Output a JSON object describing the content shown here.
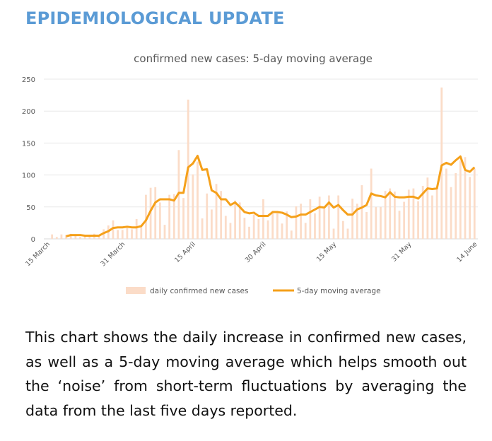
{
  "header": {
    "title": "EPIDEMIOLOGICAL UPDATE"
  },
  "colors": {
    "accent": "#5b9bd5",
    "bars": "#fbdcc8",
    "line": "#f5a01a"
  },
  "chart_data": {
    "type": "bar",
    "title": "confirmed new cases: 5-day moving average",
    "xlabel": "",
    "ylabel": "",
    "ylim": [
      0,
      250
    ],
    "yticks": [
      "0",
      "50",
      "100",
      "150",
      "200",
      "250"
    ],
    "grid": true,
    "legend_position": "bottom",
    "xtick_labels": [
      {
        "day": 0,
        "label": "15 March"
      },
      {
        "day": 16,
        "label": "31 March"
      },
      {
        "day": 31,
        "label": "15 April"
      },
      {
        "day": 46,
        "label": "30 April"
      },
      {
        "day": 61,
        "label": "15 May"
      },
      {
        "day": 77,
        "label": "31 May"
      },
      {
        "day": 91,
        "label": "14 June"
      }
    ],
    "series": [
      {
        "name": "daily confirmed new cases",
        "kind": "bar",
        "values": [
          0,
          7,
          3,
          7,
          6,
          8,
          6,
          3,
          4,
          5,
          8,
          5,
          15,
          21,
          29,
          14,
          14,
          17,
          15,
          31,
          20,
          69,
          80,
          81,
          57,
          22,
          69,
          70,
          139,
          64,
          218,
          101,
          121,
          32,
          71,
          46,
          86,
          75,
          36,
          25,
          60,
          57,
          33,
          19,
          38,
          31,
          62,
          29,
          43,
          40,
          24,
          43,
          13,
          51,
          55,
          25,
          62,
          40,
          66,
          47,
          68,
          16,
          68,
          28,
          16,
          63,
          55,
          84,
          42,
          110,
          50,
          50,
          75,
          79,
          74,
          44,
          58,
          77,
          79,
          59,
          83,
          96,
          68,
          78,
          237,
          110,
          81,
          103,
          123,
          128,
          97,
          110
        ]
      },
      {
        "name": "5-day moving average",
        "kind": "line",
        "start_day": 4,
        "values": [
          4,
          6,
          6,
          6,
          5,
          5,
          5,
          5,
          9,
          12,
          17,
          18,
          18,
          19,
          18,
          18,
          20,
          29,
          44,
          57,
          62,
          62,
          62,
          60,
          72,
          72,
          112,
          118,
          130,
          108,
          109,
          76,
          72,
          62,
          62,
          53,
          57,
          50,
          42,
          40,
          41,
          36,
          36,
          36,
          42,
          42,
          41,
          38,
          34,
          35,
          38,
          38,
          42,
          46,
          50,
          49,
          57,
          49,
          53,
          45,
          38,
          38,
          46,
          49,
          53,
          71,
          68,
          67,
          65,
          73,
          66,
          65,
          65,
          66,
          66,
          63,
          71,
          79,
          78,
          79,
          115,
          119,
          116,
          123,
          129,
          108,
          105,
          112
        ]
      }
    ]
  },
  "paragraph": "This chart shows the daily increase in confirmed new cases, as well as a 5-day moving average which helps smooth out the ‘noise’ from short-term fluctuations by averaging the data from the last five days reported."
}
